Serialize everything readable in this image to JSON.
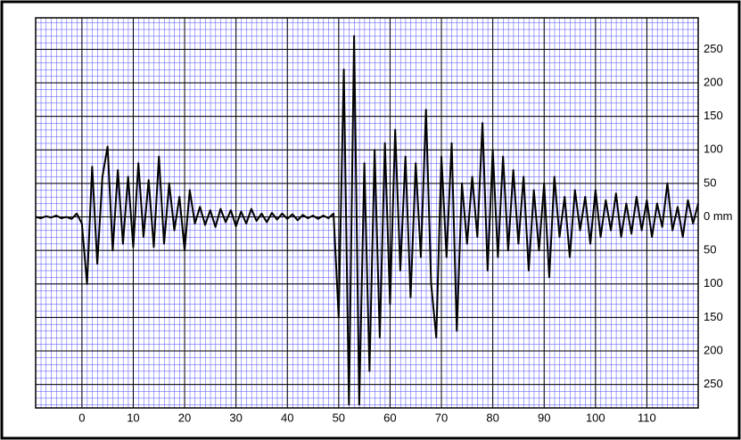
{
  "chart_data": {
    "type": "line",
    "color": "#000000",
    "grid": true,
    "x": [
      -9,
      -8,
      -7,
      -6,
      -5,
      -4,
      -3,
      -2,
      -1,
      0,
      1,
      2,
      3,
      4,
      5,
      6,
      7,
      8,
      9,
      10,
      11,
      12,
      13,
      14,
      15,
      16,
      17,
      18,
      19,
      20,
      21,
      22,
      23,
      24,
      25,
      26,
      27,
      28,
      29,
      30,
      31,
      32,
      33,
      34,
      35,
      36,
      37,
      38,
      39,
      40,
      41,
      42,
      43,
      44,
      45,
      46,
      47,
      48,
      49,
      50,
      51,
      52,
      53,
      54,
      55,
      56,
      57,
      58,
      59,
      60,
      61,
      62,
      63,
      64,
      65,
      66,
      67,
      68,
      69,
      70,
      71,
      72,
      73,
      74,
      75,
      76,
      77,
      78,
      79,
      80,
      81,
      82,
      83,
      84,
      85,
      86,
      87,
      88,
      89,
      90,
      91,
      92,
      93,
      94,
      95,
      96,
      97,
      98,
      99,
      100,
      101,
      102,
      103,
      104,
      105,
      106,
      107,
      108,
      109,
      110,
      111,
      112,
      113,
      114,
      115,
      116,
      117,
      118,
      119,
      120
    ],
    "values": [
      0,
      -2,
      1,
      -1,
      2,
      -2,
      0,
      -3,
      5,
      -10,
      -100,
      75,
      -70,
      60,
      105,
      -50,
      70,
      -40,
      60,
      -45,
      80,
      -30,
      55,
      -45,
      90,
      -40,
      50,
      -20,
      30,
      -50,
      40,
      -10,
      15,
      -12,
      10,
      -15,
      12,
      -8,
      10,
      -14,
      8,
      -10,
      12,
      -6,
      5,
      -8,
      6,
      -4,
      5,
      -3,
      4,
      -5,
      3,
      -2,
      2,
      -3,
      2,
      -2,
      5,
      -150,
      220,
      -280,
      270,
      -280,
      80,
      -230,
      100,
      -180,
      110,
      -130,
      130,
      -80,
      90,
      -120,
      80,
      -60,
      160,
      -100,
      -180,
      90,
      -60,
      110,
      -170,
      50,
      -40,
      60,
      -30,
      140,
      -80,
      100,
      -60,
      90,
      -50,
      70,
      -40,
      60,
      -80,
      40,
      -50,
      50,
      -90,
      60,
      -30,
      30,
      -60,
      40,
      -20,
      30,
      -40,
      40,
      -30,
      25,
      -20,
      35,
      -30,
      20,
      -25,
      30,
      -20,
      25,
      -30,
      20,
      -15,
      50,
      -20,
      15,
      -30,
      25,
      -10,
      20
    ],
    "xlim": [
      -9,
      120
    ],
    "ylim": [
      -285,
      297
    ],
    "xticks": [
      0,
      10,
      20,
      30,
      40,
      50,
      60,
      70,
      80,
      90,
      100,
      110
    ],
    "yticks": [
      250,
      200,
      150,
      100,
      50,
      {
        "value": 0,
        "label": "0 mm"
      },
      {
        "value": -50,
        "label": "50"
      },
      {
        "value": -100,
        "label": "100"
      },
      {
        "value": -150,
        "label": "150"
      },
      {
        "value": -200,
        "label": "200"
      },
      {
        "value": -250,
        "label": "250"
      }
    ]
  }
}
